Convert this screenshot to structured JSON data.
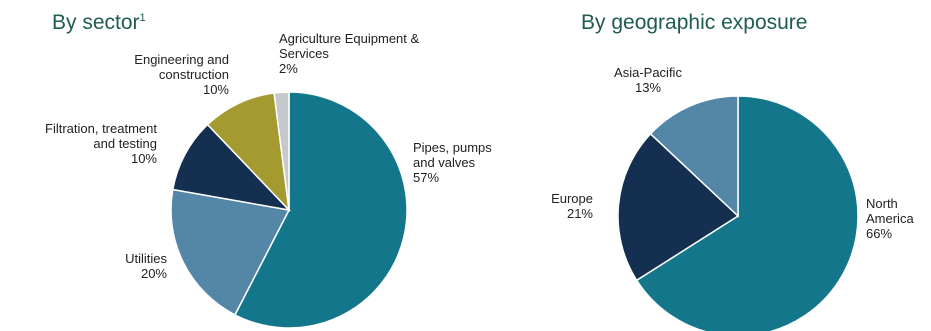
{
  "chart_data": [
    {
      "type": "pie",
      "title": "By sector",
      "title_superscript": "1",
      "slices": [
        {
          "label_lines": [
            "Pipes, pumps",
            "and valves"
          ],
          "value": 57,
          "value_text": "57%",
          "color": "#14768a"
        },
        {
          "label_lines": [
            "Utilities"
          ],
          "value": 20,
          "value_text": "20%",
          "color": "#5486a8"
        },
        {
          "label_lines": [
            "Filtration, treatment",
            "and testing"
          ],
          "value": 10,
          "value_text": "10%",
          "color": "#142f4f"
        },
        {
          "label_lines": [
            "Engineering and",
            "construction"
          ],
          "value": 10,
          "value_text": "10%",
          "color": "#a59a30"
        },
        {
          "label_lines": [
            "Agriculture Equipment &",
            "Services"
          ],
          "value": 2,
          "value_text": "2%",
          "color": "#c6c9cb"
        }
      ]
    },
    {
      "type": "pie",
      "title": "By geographic exposure",
      "slices": [
        {
          "label_lines": [
            "North",
            "America"
          ],
          "value": 66,
          "value_text": "66%",
          "color": "#14768a"
        },
        {
          "label_lines": [
            "Europe"
          ],
          "value": 21,
          "value_text": "21%",
          "color": "#142f4f"
        },
        {
          "label_lines": [
            "Asia-Pacific"
          ],
          "value": 13,
          "value_text": "13%",
          "color": "#5486a8"
        }
      ]
    }
  ]
}
